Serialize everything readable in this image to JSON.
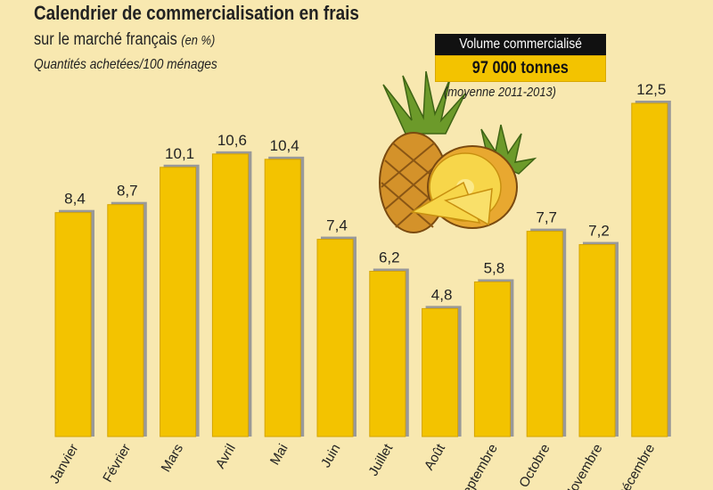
{
  "header": {
    "title": "Calendrier de commercialisation en frais",
    "subtitle": "sur le marché français",
    "subtitle_unit": "(en %)",
    "note": "Quantités achetées/100 ménages"
  },
  "volume": {
    "label": "Volume commercialisé",
    "value": "97 000 tonnes",
    "period": "(moyenne 2011-2013)"
  },
  "colors": {
    "background": "#f8e8b0",
    "bar": "#f3c300",
    "bar_shadow": "#999999",
    "highlight_box": "#f3c300"
  },
  "illustration": "pineapple",
  "chart_data": {
    "type": "bar",
    "title": "Calendrier de commercialisation en frais",
    "categories": [
      "Janvier",
      "Février",
      "Mars",
      "Avril",
      "Mai",
      "Juin",
      "Juillet",
      "Août",
      "Septembre",
      "Octobre",
      "Novembre",
      "Décembre"
    ],
    "values": [
      8.4,
      8.7,
      10.1,
      10.6,
      10.4,
      7.4,
      6.2,
      4.8,
      5.8,
      7.7,
      7.2,
      12.5
    ],
    "value_labels": [
      "8,4",
      "8,7",
      "10,1",
      "10,6",
      "10,4",
      "7,4",
      "6,2",
      "4,8",
      "5,8",
      "7,7",
      "7,2",
      "12,5"
    ],
    "xlabel": "",
    "ylabel": "",
    "ylim": [
      0,
      12.5
    ],
    "grid": false,
    "legend": "none"
  }
}
